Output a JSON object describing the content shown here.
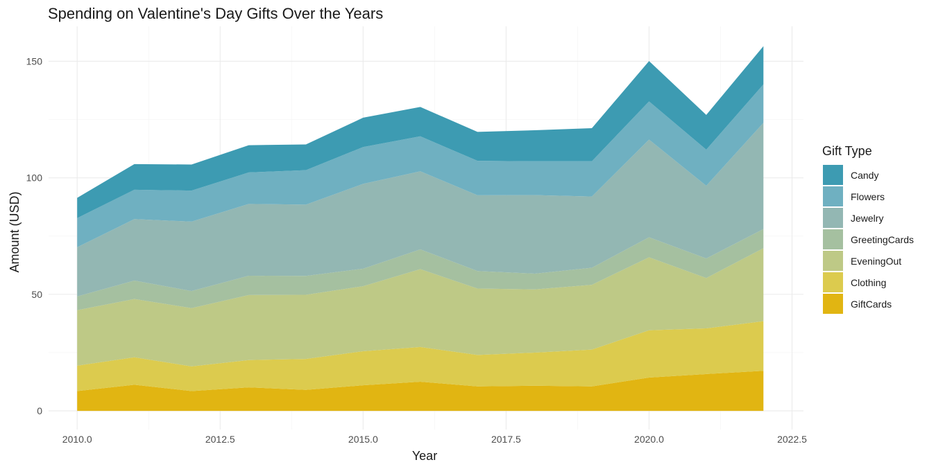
{
  "chart_data": {
    "type": "area",
    "stacked": true,
    "title": "Spending on Valentine's Day Gifts Over the Years",
    "xlabel": "Year",
    "ylabel": "Amount (USD)",
    "xlim": [
      2009.5,
      2022.7
    ],
    "ylim": [
      -8,
      165
    ],
    "x_ticks": [
      2010,
      2012.5,
      2015,
      2017.5,
      2020,
      2022.5
    ],
    "x_tick_labels": [
      "2010.0",
      "2012.5",
      "2015.0",
      "2017.5",
      "2020.0",
      "2022.5"
    ],
    "y_ticks": [
      0,
      50,
      100,
      150
    ],
    "y_tick_labels": [
      "0",
      "50",
      "100",
      "150"
    ],
    "grid": true,
    "legend_position": "right",
    "legend_title": "Gift Type",
    "x": [
      2010,
      2011,
      2012,
      2013,
      2014,
      2015,
      2016,
      2017,
      2018,
      2019,
      2020,
      2021,
      2022
    ],
    "series": [
      {
        "name": "GiftCards",
        "color": "#E1B512",
        "values": [
          8.5,
          11.2,
          8.5,
          10.1,
          9.0,
          11.0,
          12.5,
          10.5,
          10.8,
          10.5,
          14.3,
          15.8,
          17.2
        ]
      },
      {
        "name": "Clothing",
        "color": "#DCCB4E",
        "values": [
          10.9,
          11.8,
          10.6,
          11.7,
          13.3,
          14.6,
          14.9,
          13.5,
          14.2,
          15.8,
          20.3,
          19.6,
          21.3
        ]
      },
      {
        "name": "EveningOut",
        "color": "#BEC986",
        "values": [
          23.8,
          25.0,
          25.0,
          27.9,
          27.5,
          27.9,
          33.4,
          28.5,
          27.1,
          27.8,
          31.3,
          21.6,
          31.3
        ]
      },
      {
        "name": "GreetingCards",
        "color": "#A5C0A0",
        "values": [
          5.9,
          7.9,
          7.3,
          8.3,
          8.1,
          7.5,
          8.5,
          7.5,
          6.8,
          7.3,
          8.6,
          8.4,
          8.2
        ]
      },
      {
        "name": "Jewelry",
        "color": "#93B7B3",
        "values": [
          21.1,
          26.4,
          29.8,
          30.8,
          30.6,
          36.4,
          33.5,
          32.5,
          33.7,
          30.6,
          41.9,
          31.2,
          45.6
        ]
      },
      {
        "name": "Flowers",
        "color": "#6FB0C1",
        "values": [
          12.5,
          12.6,
          13.3,
          13.5,
          14.8,
          15.8,
          15.0,
          14.8,
          14.5,
          15.1,
          16.4,
          15.5,
          16.5
        ]
      },
      {
        "name": "Candy",
        "color": "#3D9BB2",
        "values": [
          8.7,
          11.0,
          11.2,
          11.7,
          11.0,
          12.6,
          12.6,
          12.4,
          13.3,
          14.2,
          17.3,
          14.9,
          16.4
        ]
      }
    ]
  }
}
